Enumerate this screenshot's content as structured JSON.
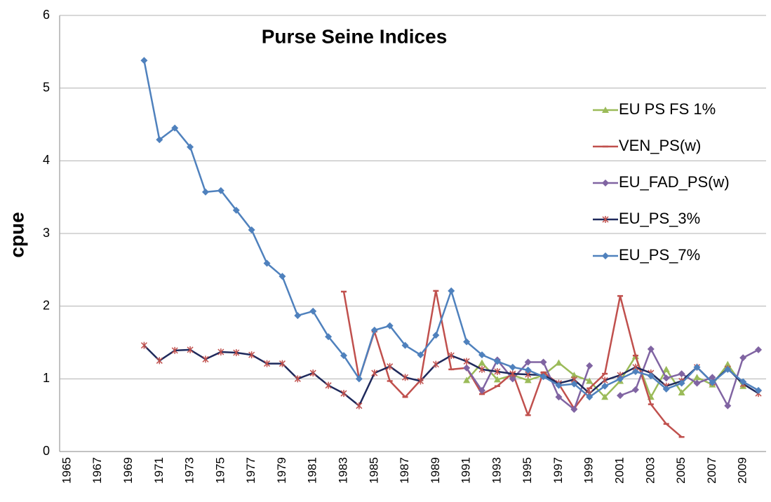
{
  "chart_data": {
    "type": "line",
    "title": "Purse Seine Indices",
    "y_label": "cpue",
    "categories": [
      "1965",
      null,
      "1967",
      null,
      "1969",
      null,
      "1971",
      null,
      "1973",
      null,
      "1975",
      null,
      "1977",
      null,
      "1979",
      null,
      "1981",
      null,
      "1983",
      null,
      "1985",
      null,
      "1987",
      null,
      "1989",
      null,
      "1991",
      null,
      "1993",
      null,
      "1995",
      null,
      "1997",
      null,
      "1999",
      null,
      "2001",
      null,
      "2003",
      null,
      "2005",
      null,
      "2007",
      null,
      "2009",
      null
    ],
    "ylim": [
      0,
      6
    ],
    "yticks": [
      0,
      1,
      2,
      3,
      4,
      5,
      6
    ],
    "grid": true,
    "legend": "right",
    "series": [
      {
        "name": "EU PS FS 1%",
        "color": "#9bbb59",
        "marker": "triangle",
        "marker_color": "#9bbb59",
        "values": [
          null,
          null,
          null,
          null,
          null,
          null,
          null,
          null,
          null,
          null,
          null,
          null,
          null,
          null,
          null,
          null,
          null,
          null,
          null,
          null,
          null,
          null,
          null,
          null,
          null,
          null,
          0.98,
          1.22,
          0.99,
          1.05,
          0.98,
          1.05,
          1.22,
          1.05,
          0.97,
          0.75,
          0.97,
          1.31,
          0.75,
          1.13,
          0.81,
          1.02,
          0.92,
          1.2,
          0.9,
          null
        ]
      },
      {
        "name": "VEN_PS(w)",
        "color": "#c0504d",
        "marker": "dash",
        "marker_color": "#c0504d",
        "values": [
          null,
          null,
          null,
          null,
          null,
          null,
          null,
          null,
          null,
          null,
          null,
          null,
          null,
          null,
          null,
          null,
          null,
          null,
          2.2,
          1.0,
          1.65,
          0.97,
          0.75,
          0.98,
          2.21,
          1.13,
          1.15,
          0.79,
          0.9,
          1.08,
          0.5,
          1.09,
          0.93,
          0.59,
          0.87,
          1.07,
          2.14,
          1.32,
          0.65,
          0.38,
          0.2,
          null,
          null,
          null,
          null,
          null
        ]
      },
      {
        "name": "EU_FAD_PS(w)",
        "color": "#8064a2",
        "marker": "diamond",
        "marker_color": "#8064a2",
        "values": [
          null,
          null,
          null,
          null,
          null,
          null,
          null,
          null,
          null,
          null,
          null,
          null,
          null,
          null,
          null,
          null,
          null,
          null,
          null,
          null,
          null,
          null,
          null,
          null,
          null,
          null,
          1.15,
          0.84,
          1.26,
          1.0,
          1.23,
          1.23,
          0.75,
          0.58,
          1.18,
          null,
          0.77,
          0.85,
          1.41,
          1.01,
          1.07,
          0.94,
          1.02,
          0.63,
          1.29,
          1.4
        ]
      },
      {
        "name": "EU_PS_3%",
        "color": "#1f2a5c",
        "marker": "asterisk",
        "marker_color": "#c0504d",
        "values": [
          null,
          null,
          null,
          null,
          null,
          1.46,
          1.25,
          1.39,
          1.4,
          1.27,
          1.37,
          1.36,
          1.33,
          1.21,
          1.21,
          1.0,
          1.08,
          0.91,
          0.8,
          0.63,
          1.08,
          1.17,
          1.02,
          0.97,
          1.2,
          1.32,
          1.24,
          1.13,
          1.1,
          1.07,
          1.06,
          1.05,
          0.94,
          0.99,
          0.8,
          0.98,
          1.05,
          1.16,
          1.08,
          0.9,
          0.97,
          1.16,
          0.95,
          1.14,
          0.93,
          0.8
        ]
      },
      {
        "name": "EU_PS_7%",
        "color": "#4f81bd",
        "marker": "diamond",
        "marker_color": "#4f81bd",
        "values": [
          null,
          null,
          null,
          null,
          null,
          5.38,
          4.29,
          4.45,
          4.19,
          3.57,
          3.59,
          3.32,
          3.05,
          2.59,
          2.41,
          1.87,
          1.93,
          1.58,
          1.32,
          1.0,
          1.67,
          1.73,
          1.46,
          1.33,
          1.6,
          2.21,
          1.51,
          1.33,
          1.24,
          1.16,
          1.12,
          1.03,
          0.91,
          0.93,
          0.75,
          0.9,
          1.0,
          1.1,
          1.04,
          0.86,
          0.94,
          1.16,
          0.95,
          1.13,
          0.96,
          0.84
        ]
      }
    ]
  }
}
